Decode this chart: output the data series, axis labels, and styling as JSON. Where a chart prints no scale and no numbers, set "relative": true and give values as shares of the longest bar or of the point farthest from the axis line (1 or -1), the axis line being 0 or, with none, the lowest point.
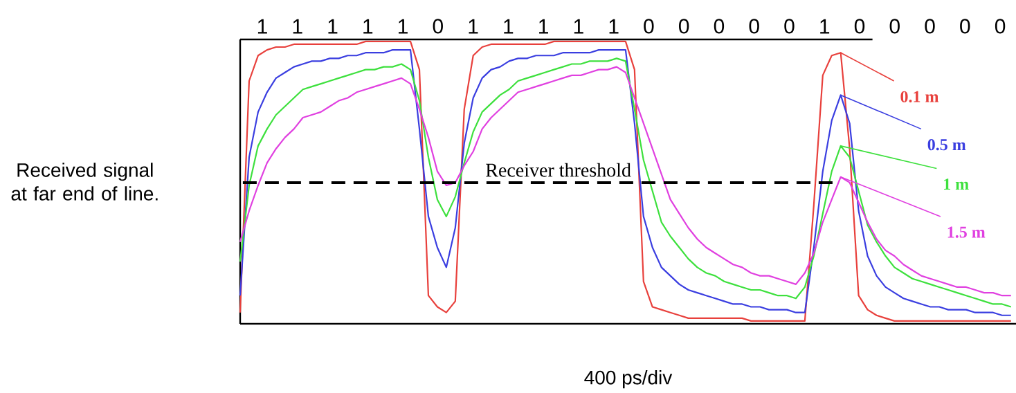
{
  "chart_data": {
    "type": "line",
    "relative": true,
    "xlabel": "400 ps/div",
    "ylabel": "Received signal at far end of line.",
    "annotations": [
      "1",
      "1",
      "1",
      "1",
      "1",
      "0",
      "1",
      "1",
      "1",
      "1",
      "1",
      "0",
      "0",
      "0",
      "0",
      "0",
      "1",
      "0",
      "0",
      "0",
      "0",
      "0"
    ],
    "categories": [
      null,
      null,
      null,
      null,
      null,
      null,
      null,
      null,
      null,
      null,
      null,
      null,
      null,
      null,
      null,
      null,
      null,
      null,
      null,
      null,
      null,
      null,
      null,
      null,
      null,
      null,
      null,
      null,
      null,
      null,
      null,
      null,
      null,
      null,
      null,
      null,
      null,
      null,
      null,
      null,
      null,
      null,
      null,
      null,
      null,
      null,
      null,
      null,
      null,
      null,
      null,
      null,
      null,
      null,
      null,
      null,
      null,
      null,
      null,
      null,
      null,
      null,
      null,
      null,
      null,
      null,
      null,
      null,
      null,
      null,
      null,
      null,
      null,
      null,
      null,
      null,
      null,
      null,
      null,
      null,
      null,
      null,
      null,
      null,
      null,
      null,
      null
    ],
    "ref_lines": [
      {
        "axis": "y",
        "value": 0.5,
        "label": "Receiver threshold",
        "color": "#000000",
        "line_style": "dashed"
      }
    ],
    "series": [
      {
        "name": "0.1 m",
        "color": "#e8403c",
        "values": [
          0.04,
          0.86,
          0.95,
          0.97,
          0.98,
          0.98,
          0.99,
          0.99,
          0.99,
          0.99,
          0.99,
          0.99,
          0.99,
          0.99,
          1,
          1,
          1,
          1,
          1,
          1,
          0.9,
          0.1,
          0.06,
          0.04,
          0.08,
          0.76,
          0.95,
          0.98,
          0.99,
          0.99,
          0.99,
          0.99,
          0.99,
          0.99,
          0.99,
          1,
          1,
          1,
          1,
          1,
          1,
          1,
          1,
          1,
          0.9,
          0.15,
          0.06,
          0.05,
          0.04,
          0.03,
          0.02,
          0.02,
          0.02,
          0.02,
          0.02,
          0.02,
          0.02,
          0.01,
          0.01,
          0.01,
          0.01,
          0.01,
          0.01,
          0.01,
          0.42,
          0.88,
          0.95,
          0.96,
          0.62,
          0.1,
          0.05,
          0.03,
          0.02,
          0.01,
          0.01,
          0.01,
          0.01,
          0.01,
          0.01,
          0.01,
          0.01,
          0.01,
          0.01,
          0.01,
          0.01,
          0.01,
          0.01
        ]
      },
      {
        "name": "0.5 m",
        "color": "#3a3ee0",
        "values": [
          0.1,
          0.59,
          0.75,
          0.82,
          0.87,
          0.89,
          0.91,
          0.92,
          0.93,
          0.93,
          0.94,
          0.94,
          0.95,
          0.95,
          0.96,
          0.96,
          0.96,
          0.97,
          0.97,
          0.97,
          0.69,
          0.38,
          0.27,
          0.2,
          0.34,
          0.64,
          0.8,
          0.87,
          0.9,
          0.91,
          0.93,
          0.94,
          0.94,
          0.95,
          0.95,
          0.95,
          0.96,
          0.96,
          0.96,
          0.96,
          0.97,
          0.97,
          0.97,
          0.97,
          0.71,
          0.38,
          0.27,
          0.2,
          0.17,
          0.14,
          0.12,
          0.11,
          0.1,
          0.09,
          0.08,
          0.07,
          0.07,
          0.06,
          0.06,
          0.05,
          0.05,
          0.05,
          0.04,
          0.04,
          0.27,
          0.54,
          0.72,
          0.81,
          0.71,
          0.4,
          0.24,
          0.17,
          0.13,
          0.11,
          0.09,
          0.08,
          0.07,
          0.06,
          0.06,
          0.05,
          0.05,
          0.05,
          0.04,
          0.04,
          0.04,
          0.03,
          0.03
        ]
      },
      {
        "name": "1 m",
        "color": "#3de03d",
        "values": [
          0.22,
          0.49,
          0.63,
          0.69,
          0.74,
          0.77,
          0.8,
          0.83,
          0.84,
          0.85,
          0.86,
          0.87,
          0.88,
          0.89,
          0.9,
          0.9,
          0.91,
          0.91,
          0.92,
          0.9,
          0.79,
          0.59,
          0.44,
          0.38,
          0.45,
          0.57,
          0.68,
          0.75,
          0.78,
          0.81,
          0.83,
          0.86,
          0.87,
          0.88,
          0.89,
          0.9,
          0.91,
          0.92,
          0.92,
          0.93,
          0.93,
          0.93,
          0.94,
          0.93,
          0.76,
          0.58,
          0.47,
          0.36,
          0.31,
          0.27,
          0.23,
          0.2,
          0.18,
          0.17,
          0.15,
          0.14,
          0.13,
          0.12,
          0.12,
          0.11,
          0.1,
          0.1,
          0.09,
          0.13,
          0.24,
          0.39,
          0.54,
          0.63,
          0.59,
          0.47,
          0.35,
          0.29,
          0.24,
          0.2,
          0.18,
          0.16,
          0.15,
          0.14,
          0.13,
          0.12,
          0.11,
          0.1,
          0.09,
          0.08,
          0.07,
          0.07,
          0.06
        ]
      },
      {
        "name": "1.5 m",
        "color": "#e040e0",
        "values": [
          0.29,
          0.4,
          0.49,
          0.57,
          0.62,
          0.66,
          0.69,
          0.73,
          0.74,
          0.75,
          0.77,
          0.79,
          0.8,
          0.82,
          0.83,
          0.84,
          0.85,
          0.86,
          0.87,
          0.85,
          0.76,
          0.66,
          0.54,
          0.49,
          0.5,
          0.56,
          0.61,
          0.69,
          0.73,
          0.76,
          0.79,
          0.82,
          0.83,
          0.84,
          0.85,
          0.86,
          0.87,
          0.88,
          0.88,
          0.89,
          0.9,
          0.9,
          0.91,
          0.89,
          0.8,
          0.71,
          0.62,
          0.53,
          0.44,
          0.39,
          0.34,
          0.3,
          0.27,
          0.25,
          0.23,
          0.21,
          0.2,
          0.18,
          0.17,
          0.17,
          0.16,
          0.15,
          0.14,
          0.18,
          0.25,
          0.36,
          0.44,
          0.52,
          0.5,
          0.43,
          0.36,
          0.3,
          0.26,
          0.24,
          0.21,
          0.19,
          0.17,
          0.16,
          0.15,
          0.14,
          0.13,
          0.13,
          0.12,
          0.11,
          0.11,
          0.1,
          0.1
        ]
      }
    ]
  }
}
